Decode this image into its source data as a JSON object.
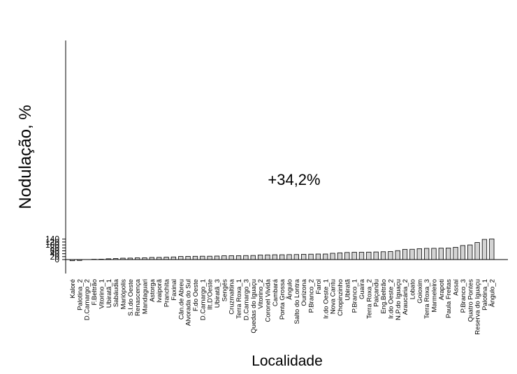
{
  "chart_data": {
    "type": "bar",
    "ylabel": "Nodulação, %",
    "xlabel": "Localidade",
    "annotation": "+34,2%",
    "ylim": [
      -10,
      150
    ],
    "yticks": [
      0,
      20,
      40,
      60,
      80,
      100,
      120,
      140
    ],
    "grid": false,
    "bar_color": "#d3d3d3",
    "categories": [
      "Kaloré",
      "Palotina_2",
      "D.Camargo_2",
      "F.Beltrão",
      "Vitorino_1",
      "Ubiratã_1",
      "Sabáudia",
      "Mariópolis",
      "S.I.do Oeste",
      "Renascença",
      "Mandaguari",
      "Astorga",
      "Ivaiporã",
      "Pranchita",
      "Faxinal",
      "Cân.de Abreu",
      "Alvorada do Sul",
      "F.do Oeste",
      "D.Camargo_1",
      "Ilt.D'Oeste",
      "Ubiratã_3",
      "Sengés",
      "Cruzmaltina",
      "Terra Roxa_1",
      "D.Camargo_3",
      "Quedas do Iguaçu",
      "Vitorino_2",
      "Coronel Vivida",
      "Cambará",
      "Ponta Grossa",
      "Ângulo",
      "Salto do Lontra",
      "Ourizona",
      "P.Branco_2",
      "Farol",
      "Ir.do Oeste_1",
      "Nova Cantu",
      "Chopinzinho",
      "Ubiratã",
      "P.Branco_1",
      "Guaíra",
      "Terra Roxa_2",
      "Paiçandu",
      "Eng.Beltrão",
      "Ir.do Oeste_2",
      "N.P.do Iguaçu",
      "Araucária_2",
      "Lobato",
      "Goioxim",
      "Terra Roxa_3",
      "Marmeleiro",
      "Arapoti",
      "Paula Freitas",
      "Assaí",
      "P.Branco_3",
      "Quatro Pontes",
      "Reserva do Iguaçu",
      "Palotina_1",
      "Ângulo_2"
    ],
    "values": [
      -8,
      -6,
      0,
      2,
      2.5,
      5.5,
      7,
      9.5,
      10,
      11.5,
      12,
      14.5,
      15,
      16.5,
      18,
      21,
      22,
      22.5,
      23,
      23,
      24,
      26,
      26.5,
      26.5,
      27.5,
      28,
      31,
      32,
      33,
      33,
      34,
      34.5,
      36,
      37,
      38,
      38,
      43,
      46,
      48.5,
      50,
      50,
      51,
      52,
      53.5,
      55,
      61,
      70,
      70.5,
      74.5,
      76.5,
      77,
      78,
      79,
      84,
      96,
      100,
      116.5,
      138,
      141
    ]
  }
}
